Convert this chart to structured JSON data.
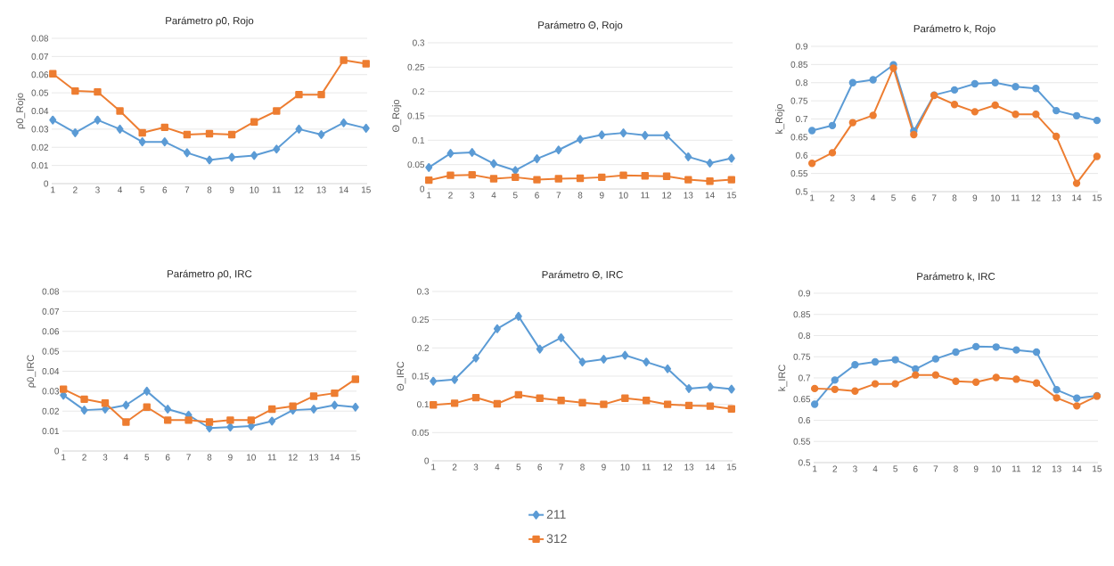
{
  "chart_data": [
    {
      "type": "line",
      "title": "Parámetro ρ0, Rojo",
      "ylabel": "ρ0_Rojo",
      "categories": [
        "1",
        "2",
        "3",
        "4",
        "5",
        "6",
        "7",
        "8",
        "9",
        "10",
        "11",
        "12",
        "13",
        "14",
        "15"
      ],
      "ylim": [
        0,
        0.08
      ],
      "yticks": [
        0,
        0.01,
        0.02,
        0.03,
        0.04,
        0.05,
        0.06,
        0.07,
        0.08
      ],
      "grid": "y",
      "legend": "bottom",
      "series": [
        {
          "name": "211",
          "color": "#5b9bd5",
          "marker": "diamond",
          "values": [
            0.035,
            0.028,
            0.035,
            0.03,
            0.023,
            0.023,
            0.017,
            0.013,
            0.0145,
            0.0155,
            0.019,
            0.03,
            0.027,
            0.0335,
            0.0305
          ]
        },
        {
          "name": "312",
          "color": "#ed7d31",
          "marker": "square",
          "values": [
            0.0605,
            0.051,
            0.0505,
            0.04,
            0.028,
            0.031,
            0.027,
            0.0275,
            0.027,
            0.034,
            0.04,
            0.049,
            0.049,
            0.068,
            0.066
          ]
        }
      ]
    },
    {
      "type": "line",
      "title": "Parámetro Θ, Rojo",
      "ylabel": "Θ_Rojo",
      "categories": [
        "1",
        "2",
        "3",
        "4",
        "5",
        "6",
        "7",
        "8",
        "9",
        "10",
        "11",
        "12",
        "13",
        "14",
        "15"
      ],
      "ylim": [
        0,
        0.3
      ],
      "yticks": [
        0,
        0.05,
        0.1,
        0.15,
        0.2,
        0.25,
        0.3
      ],
      "grid": "y",
      "series": [
        {
          "color": "#5b9bd5",
          "marker": "diamond",
          "values": [
            0.044,
            0.073,
            0.075,
            0.052,
            0.038,
            0.062,
            0.08,
            0.102,
            0.111,
            0.115,
            0.11,
            0.11,
            0.066,
            0.053,
            0.063
          ]
        },
        {
          "color": "#ed7d31",
          "marker": "square",
          "values": [
            0.018,
            0.028,
            0.029,
            0.021,
            0.024,
            0.019,
            0.021,
            0.022,
            0.024,
            0.028,
            0.027,
            0.026,
            0.019,
            0.016,
            0.019
          ]
        }
      ]
    },
    {
      "type": "line",
      "title": "Parámetro k, Rojo",
      "ylabel": "k_Rojo",
      "categories": [
        "1",
        "2",
        "3",
        "4",
        "5",
        "6",
        "7",
        "8",
        "9",
        "10",
        "11",
        "12",
        "13",
        "14",
        "15"
      ],
      "ylim": [
        0.5,
        0.9
      ],
      "yticks": [
        0.5,
        0.55,
        0.6,
        0.65,
        0.7,
        0.75,
        0.8,
        0.85,
        0.9
      ],
      "grid": "y",
      "series": [
        {
          "color": "#5b9bd5",
          "marker": "circle",
          "values": [
            0.668,
            0.682,
            0.8,
            0.808,
            0.849,
            0.667,
            0.766,
            0.78,
            0.797,
            0.8,
            0.789,
            0.784,
            0.723,
            0.709,
            0.696
          ]
        },
        {
          "color": "#ed7d31",
          "marker": "circle",
          "values": [
            0.578,
            0.607,
            0.69,
            0.71,
            0.84,
            0.657,
            0.765,
            0.74,
            0.72,
            0.738,
            0.713,
            0.713,
            0.652,
            0.523,
            0.597
          ]
        }
      ]
    },
    {
      "type": "line",
      "title": "Parámetro ρ0, IRC",
      "ylabel": "ρ0_IRC",
      "categories": [
        "1",
        "2",
        "3",
        "4",
        "5",
        "6",
        "7",
        "8",
        "9",
        "10",
        "11",
        "12",
        "13",
        "14",
        "15"
      ],
      "ylim": [
        0,
        0.08
      ],
      "yticks": [
        0,
        0.01,
        0.02,
        0.03,
        0.04,
        0.05,
        0.06,
        0.07,
        0.08
      ],
      "grid": "y",
      "series": [
        {
          "color": "#5b9bd5",
          "marker": "diamond",
          "values": [
            0.028,
            0.0205,
            0.021,
            0.023,
            0.03,
            0.021,
            0.018,
            0.0115,
            0.012,
            0.0125,
            0.015,
            0.0205,
            0.021,
            0.023,
            0.022
          ]
        },
        {
          "color": "#ed7d31",
          "marker": "square",
          "values": [
            0.031,
            0.026,
            0.024,
            0.0145,
            0.022,
            0.0155,
            0.0155,
            0.0145,
            0.0155,
            0.0155,
            0.021,
            0.0225,
            0.0275,
            0.029,
            0.036
          ]
        }
      ]
    },
    {
      "type": "line",
      "title": "Parámetro Θ, IRC",
      "ylabel": "Θ_IRC",
      "categories": [
        "1",
        "2",
        "3",
        "4",
        "5",
        "6",
        "7",
        "8",
        "9",
        "10",
        "11",
        "12",
        "13",
        "14",
        "15"
      ],
      "ylim": [
        0,
        0.3
      ],
      "yticks": [
        0,
        0.05,
        0.1,
        0.15,
        0.2,
        0.25,
        0.3
      ],
      "grid": "y",
      "series": [
        {
          "color": "#5b9bd5",
          "marker": "diamond",
          "values": [
            0.141,
            0.144,
            0.182,
            0.234,
            0.256,
            0.198,
            0.218,
            0.175,
            0.18,
            0.187,
            0.175,
            0.163,
            0.128,
            0.131,
            0.127
          ]
        },
        {
          "color": "#ed7d31",
          "marker": "square",
          "values": [
            0.099,
            0.102,
            0.112,
            0.101,
            0.117,
            0.111,
            0.107,
            0.103,
            0.1,
            0.111,
            0.107,
            0.1,
            0.098,
            0.097,
            0.092
          ]
        }
      ]
    },
    {
      "type": "line",
      "title": "Parámetro k, IRC",
      "ylabel": "k_IRC",
      "categories": [
        "1",
        "2",
        "3",
        "4",
        "5",
        "6",
        "7",
        "8",
        "9",
        "10",
        "11",
        "12",
        "13",
        "14",
        "15"
      ],
      "ylim": [
        0.5,
        0.9
      ],
      "yticks": [
        0.5,
        0.55,
        0.6,
        0.65,
        0.7,
        0.75,
        0.8,
        0.85,
        0.9
      ],
      "grid": "y",
      "series": [
        {
          "color": "#5b9bd5",
          "marker": "circle",
          "values": [
            0.638,
            0.695,
            0.731,
            0.738,
            0.743,
            0.721,
            0.745,
            0.761,
            0.774,
            0.773,
            0.766,
            0.761,
            0.672,
            0.652,
            0.658
          ]
        },
        {
          "color": "#ed7d31",
          "marker": "circle",
          "values": [
            0.675,
            0.673,
            0.669,
            0.686,
            0.686,
            0.707,
            0.707,
            0.692,
            0.69,
            0.701,
            0.697,
            0.688,
            0.653,
            0.634,
            0.657
          ]
        }
      ]
    }
  ]
}
